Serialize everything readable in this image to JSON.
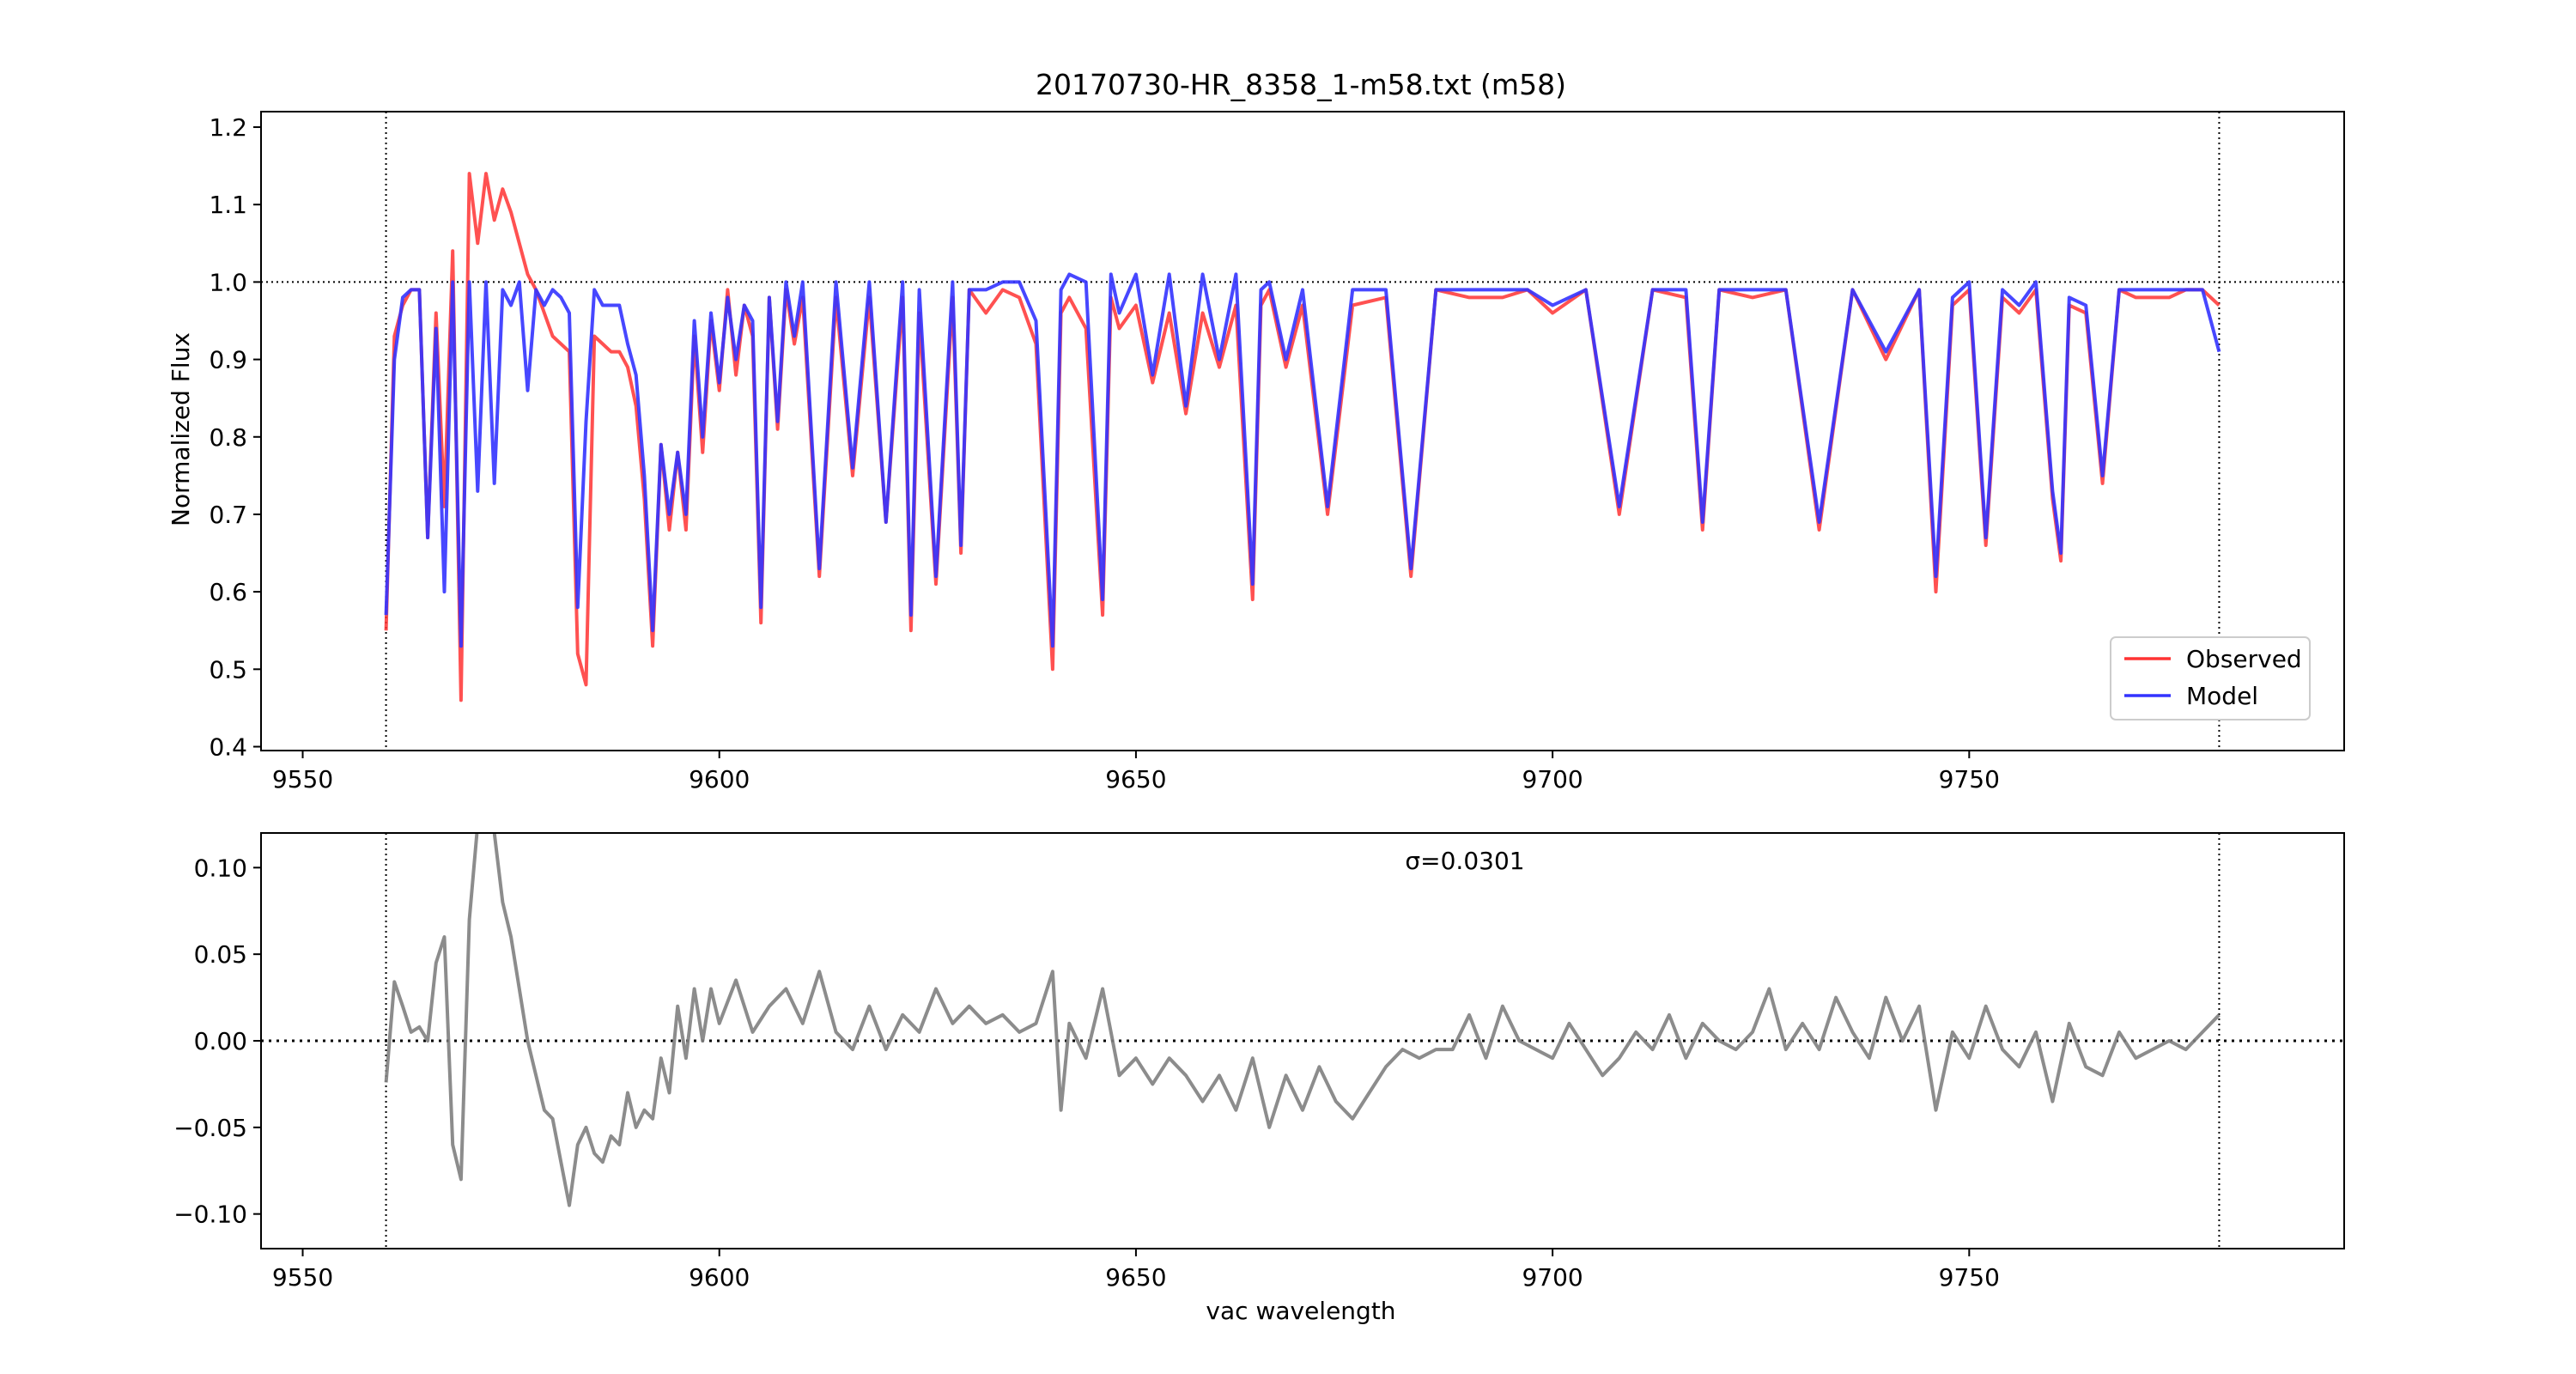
{
  "chart_data": [
    {
      "type": "line",
      "title": "20170730-HR_8358_1-m58.txt (m58)",
      "xlabel": "",
      "ylabel": "Normalized Flux",
      "xlim": [
        9545,
        9795
      ],
      "ylim": [
        0.395,
        1.22
      ],
      "xticks": [
        9550,
        9600,
        9650,
        9700,
        9750
      ],
      "yticks": [
        0.4,
        0.5,
        0.6,
        0.7,
        0.8,
        0.9,
        1.0,
        1.1,
        1.2
      ],
      "xtick_labels": [
        "9550",
        "9600",
        "9650",
        "9700",
        "9750"
      ],
      "ytick_labels": [
        "0.4",
        "0.5",
        "0.6",
        "0.7",
        "0.8",
        "0.9",
        "1.0",
        "1.1",
        "1.2"
      ],
      "reference_lines": {
        "x": [
          9560,
          9780
        ],
        "y": [
          1.0
        ]
      },
      "grid": false,
      "legend_position": "lower-right",
      "series": [
        {
          "name": "Observed",
          "color": "#ff3333",
          "x": [
            9560,
            9561,
            9562,
            9563,
            9564,
            9565,
            9566,
            9567,
            9568,
            9569,
            9570,
            9571,
            9572,
            9573,
            9574,
            9575,
            9576,
            9577,
            9578,
            9579,
            9580,
            9581,
            9582,
            9583,
            9584,
            9585,
            9586,
            9587,
            9588,
            9589,
            9590,
            9591,
            9592,
            9593,
            9594,
            9595,
            9596,
            9597,
            9598,
            9599,
            9600,
            9601,
            9602,
            9603,
            9604,
            9605,
            9606,
            9607,
            9608,
            9609,
            9610,
            9612,
            9614,
            9616,
            9618,
            9620,
            9622,
            9623,
            9624,
            9626,
            9628,
            9629,
            9630,
            9632,
            9634,
            9636,
            9638,
            9640,
            9641,
            9642,
            9644,
            9646,
            9647,
            9648,
            9650,
            9652,
            9654,
            9656,
            9658,
            9660,
            9662,
            9664,
            9665,
            9666,
            9668,
            9670,
            9673,
            9676,
            9680,
            9683,
            9686,
            9690,
            9694,
            9697,
            9700,
            9704,
            9708,
            9712,
            9716,
            9718,
            9720,
            9724,
            9728,
            9732,
            9736,
            9740,
            9744,
            9746,
            9748,
            9750,
            9752,
            9754,
            9756,
            9758,
            9760,
            9761,
            9762,
            9764,
            9766,
            9768,
            9770,
            9772,
            9774,
            9776,
            9778,
            9780
          ],
          "y": [
            0.55,
            0.93,
            0.97,
            0.99,
            0.99,
            0.67,
            0.96,
            0.71,
            1.04,
            0.46,
            1.14,
            1.05,
            1.14,
            1.08,
            1.12,
            1.09,
            1.05,
            1.01,
            0.99,
            0.96,
            0.93,
            0.92,
            0.91,
            0.52,
            0.48,
            0.93,
            0.92,
            0.91,
            0.91,
            0.89,
            0.84,
            0.72,
            0.53,
            0.79,
            0.68,
            0.78,
            0.68,
            0.93,
            0.78,
            0.95,
            0.86,
            0.99,
            0.88,
            0.97,
            0.93,
            0.56,
            0.98,
            0.81,
            0.99,
            0.92,
            0.98,
            0.62,
            0.98,
            0.75,
            0.98,
            0.69,
            0.98,
            0.55,
            0.96,
            0.61,
            0.98,
            0.65,
            0.99,
            0.96,
            0.99,
            0.98,
            0.92,
            0.5,
            0.96,
            0.98,
            0.94,
            0.57,
            0.98,
            0.94,
            0.97,
            0.87,
            0.96,
            0.83,
            0.96,
            0.89,
            0.97,
            0.59,
            0.97,
            0.99,
            0.89,
            0.97,
            0.7,
            0.97,
            0.98,
            0.62,
            0.99,
            0.98,
            0.98,
            0.99,
            0.96,
            0.99,
            0.7,
            0.99,
            0.98,
            0.68,
            0.99,
            0.98,
            0.99,
            0.68,
            0.99,
            0.9,
            0.99,
            0.6,
            0.97,
            0.99,
            0.66,
            0.98,
            0.96,
            0.99,
            0.72,
            0.64,
            0.97,
            0.96,
            0.74,
            0.99,
            0.98,
            0.98,
            0.98,
            0.99,
            0.99,
            0.97
          ]
        },
        {
          "name": "Model",
          "color": "#3333ff",
          "x": [
            9560,
            9561,
            9562,
            9563,
            9564,
            9565,
            9566,
            9567,
            9568,
            9569,
            9570,
            9571,
            9572,
            9573,
            9574,
            9575,
            9576,
            9577,
            9578,
            9579,
            9580,
            9581,
            9582,
            9583,
            9584,
            9585,
            9586,
            9587,
            9588,
            9589,
            9590,
            9591,
            9592,
            9593,
            9594,
            9595,
            9596,
            9597,
            9598,
            9599,
            9600,
            9601,
            9602,
            9603,
            9604,
            9605,
            9606,
            9607,
            9608,
            9609,
            9610,
            9612,
            9614,
            9616,
            9618,
            9620,
            9622,
            9623,
            9624,
            9626,
            9628,
            9629,
            9630,
            9632,
            9634,
            9636,
            9638,
            9640,
            9641,
            9642,
            9644,
            9646,
            9647,
            9648,
            9650,
            9652,
            9654,
            9656,
            9658,
            9660,
            9662,
            9664,
            9665,
            9666,
            9668,
            9670,
            9673,
            9676,
            9680,
            9683,
            9686,
            9690,
            9694,
            9697,
            9700,
            9704,
            9708,
            9712,
            9716,
            9718,
            9720,
            9724,
            9728,
            9732,
            9736,
            9740,
            9744,
            9746,
            9748,
            9750,
            9752,
            9754,
            9756,
            9758,
            9760,
            9761,
            9762,
            9764,
            9766,
            9768,
            9770,
            9772,
            9774,
            9776,
            9778,
            9780
          ],
          "y": [
            0.57,
            0.9,
            0.98,
            0.99,
            0.99,
            0.67,
            0.94,
            0.6,
            1.0,
            0.53,
            1.0,
            0.73,
            1.0,
            0.74,
            0.99,
            0.97,
            1.0,
            0.86,
            0.99,
            0.97,
            0.99,
            0.98,
            0.96,
            0.58,
            0.82,
            0.99,
            0.97,
            0.97,
            0.97,
            0.92,
            0.88,
            0.75,
            0.55,
            0.79,
            0.7,
            0.78,
            0.7,
            0.95,
            0.8,
            0.96,
            0.87,
            0.98,
            0.9,
            0.97,
            0.95,
            0.58,
            0.98,
            0.82,
            1.0,
            0.93,
            1.0,
            0.63,
            1.0,
            0.76,
            1.0,
            0.69,
            1.0,
            0.57,
            0.99,
            0.62,
            1.0,
            0.66,
            0.99,
            0.99,
            1.0,
            1.0,
            0.95,
            0.53,
            0.99,
            1.01,
            1.0,
            0.59,
            1.01,
            0.96,
            1.01,
            0.88,
            1.01,
            0.84,
            1.01,
            0.9,
            1.01,
            0.61,
            0.99,
            1.0,
            0.9,
            0.99,
            0.71,
            0.99,
            0.99,
            0.63,
            0.99,
            0.99,
            0.99,
            0.99,
            0.97,
            0.99,
            0.71,
            0.99,
            0.99,
            0.69,
            0.99,
            0.99,
            0.99,
            0.69,
            0.99,
            0.91,
            0.99,
            0.62,
            0.98,
            1.0,
            0.67,
            0.99,
            0.97,
            1.0,
            0.73,
            0.65,
            0.98,
            0.97,
            0.75,
            0.99,
            0.99,
            0.99,
            0.99,
            0.99,
            0.99,
            0.91
          ]
        }
      ]
    },
    {
      "type": "line",
      "title": "",
      "xlabel": "vac wavelength",
      "ylabel": "",
      "annotation": "σ=0.0301",
      "xlim": [
        9545,
        9795
      ],
      "ylim": [
        -0.12,
        0.12
      ],
      "xticks": [
        9550,
        9600,
        9650,
        9700,
        9750
      ],
      "yticks": [
        -0.1,
        -0.05,
        0.0,
        0.05,
        0.1
      ],
      "xtick_labels": [
        "9550",
        "9600",
        "9650",
        "9700",
        "9750"
      ],
      "ytick_labels": [
        "−0.10",
        "−0.05",
        "0.00",
        "0.05",
        "0.10"
      ],
      "reference_lines": {
        "x": [
          9560,
          9780
        ],
        "y": [
          0.0
        ]
      },
      "grid": false,
      "series": [
        {
          "name": "",
          "color": "#808080",
          "x": [
            9560,
            9561,
            9562,
            9563,
            9564,
            9565,
            9566,
            9567,
            9568,
            9569,
            9570,
            9571,
            9572,
            9573,
            9574,
            9575,
            9576,
            9577,
            9578,
            9579,
            9580,
            9581,
            9582,
            9583,
            9584,
            9585,
            9586,
            9587,
            9588,
            9589,
            9590,
            9591,
            9592,
            9593,
            9594,
            9595,
            9596,
            9597,
            9598,
            9599,
            9600,
            9602,
            9604,
            9606,
            9608,
            9610,
            9612,
            9614,
            9616,
            9618,
            9620,
            9622,
            9624,
            9626,
            9628,
            9630,
            9632,
            9634,
            9636,
            9638,
            9640,
            9641,
            9642,
            9644,
            9646,
            9648,
            9650,
            9652,
            9654,
            9656,
            9658,
            9660,
            9662,
            9664,
            9666,
            9668,
            9670,
            9672,
            9674,
            9676,
            9678,
            9680,
            9682,
            9684,
            9686,
            9688,
            9690,
            9692,
            9694,
            9696,
            9698,
            9700,
            9702,
            9704,
            9706,
            9708,
            9710,
            9712,
            9714,
            9716,
            9718,
            9720,
            9722,
            9724,
            9726,
            9728,
            9730,
            9732,
            9734,
            9736,
            9738,
            9740,
            9742,
            9744,
            9746,
            9748,
            9750,
            9752,
            9754,
            9756,
            9758,
            9760,
            9762,
            9764,
            9766,
            9768,
            9770,
            9772,
            9774,
            9776,
            9778,
            9780
          ],
          "y": [
            -0.024,
            0.034,
            0.02,
            0.005,
            0.008,
            0.0,
            0.045,
            0.06,
            -0.06,
            -0.08,
            0.07,
            0.125,
            0.13,
            0.12,
            0.08,
            0.06,
            0.03,
            0.0,
            -0.02,
            -0.04,
            -0.045,
            -0.07,
            -0.095,
            -0.06,
            -0.05,
            -0.065,
            -0.07,
            -0.055,
            -0.06,
            -0.03,
            -0.05,
            -0.04,
            -0.045,
            -0.01,
            -0.03,
            0.02,
            -0.01,
            0.03,
            0.0,
            0.03,
            0.01,
            0.035,
            0.005,
            0.02,
            0.03,
            0.01,
            0.04,
            0.005,
            -0.005,
            0.02,
            -0.005,
            0.015,
            0.005,
            0.03,
            0.01,
            0.02,
            0.01,
            0.015,
            0.005,
            0.01,
            0.04,
            -0.04,
            0.01,
            -0.01,
            0.03,
            -0.02,
            -0.01,
            -0.025,
            -0.01,
            -0.02,
            -0.035,
            -0.02,
            -0.04,
            -0.01,
            -0.05,
            -0.02,
            -0.04,
            -0.015,
            -0.035,
            -0.045,
            -0.03,
            -0.015,
            -0.005,
            -0.01,
            -0.005,
            -0.005,
            0.015,
            -0.01,
            0.02,
            0.0,
            -0.005,
            -0.01,
            0.01,
            -0.005,
            -0.02,
            -0.01,
            0.005,
            -0.005,
            0.015,
            -0.01,
            0.01,
            0.0,
            -0.005,
            0.005,
            0.03,
            -0.005,
            0.01,
            -0.005,
            0.025,
            0.005,
            -0.01,
            0.025,
            0.0,
            0.02,
            -0.04,
            0.005,
            -0.01,
            0.02,
            -0.005,
            -0.015,
            0.005,
            -0.035,
            0.01,
            -0.015,
            -0.02,
            0.005,
            -0.01,
            -0.005,
            0.0,
            -0.005,
            0.005,
            0.015
          ]
        }
      ]
    }
  ]
}
